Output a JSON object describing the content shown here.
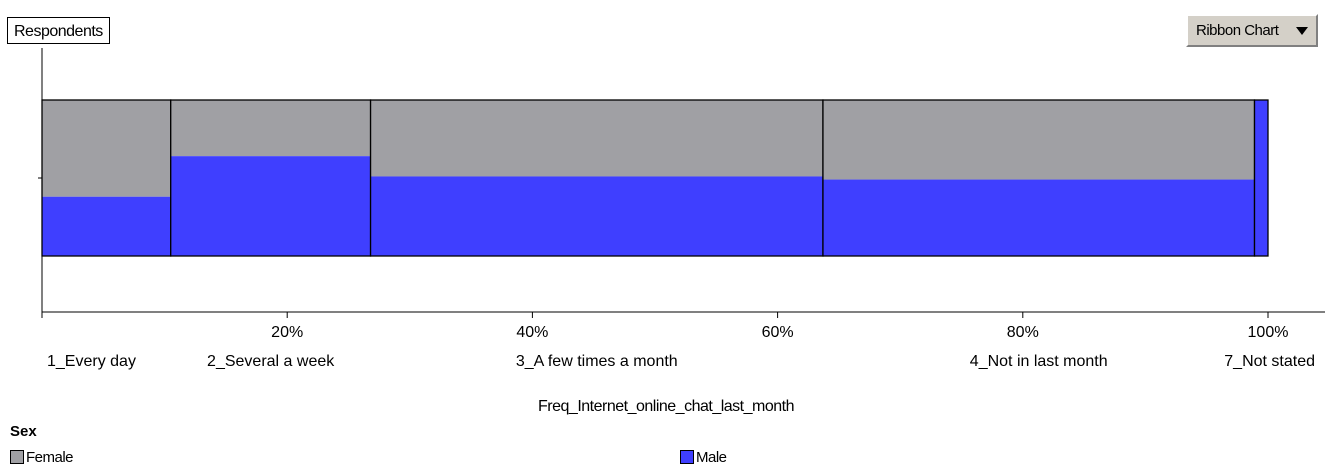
{
  "y_label": "Respondents",
  "chart_type_button": {
    "label": "Ribbon Chart"
  },
  "x_title": "Freq_Internet_online_chat_last_month",
  "legend": {
    "title": "Sex",
    "items": [
      {
        "label": "Female",
        "color": "#a0a0a4"
      },
      {
        "label": "Male",
        "color": "#3f3fff"
      }
    ]
  },
  "chart_data": {
    "type": "bar",
    "subtype": "ribbon",
    "title": "",
    "xlabel": "Freq_Internet_online_chat_last_month",
    "ylabel": "Respondents",
    "xlim": [
      0,
      100
    ],
    "x_ticks": [
      "20%",
      "40%",
      "60%",
      "80%",
      "100%"
    ],
    "x_tick_values": [
      20,
      40,
      60,
      80,
      100
    ],
    "categories": [
      "1_Every day",
      "2_Several a week",
      "3_A few times a month",
      "4_Not in last month",
      "7_Not stated"
    ],
    "category_share_percent": [
      10.5,
      16.3,
      36.9,
      35.2,
      1.1
    ],
    "series": [
      {
        "name": "Female",
        "color": "#a0a0a4",
        "values_percent": [
          62,
          36,
          49,
          51,
          0
        ]
      },
      {
        "name": "Male",
        "color": "#3f3fff",
        "values_percent": [
          38,
          64,
          51,
          49,
          100
        ]
      }
    ]
  }
}
